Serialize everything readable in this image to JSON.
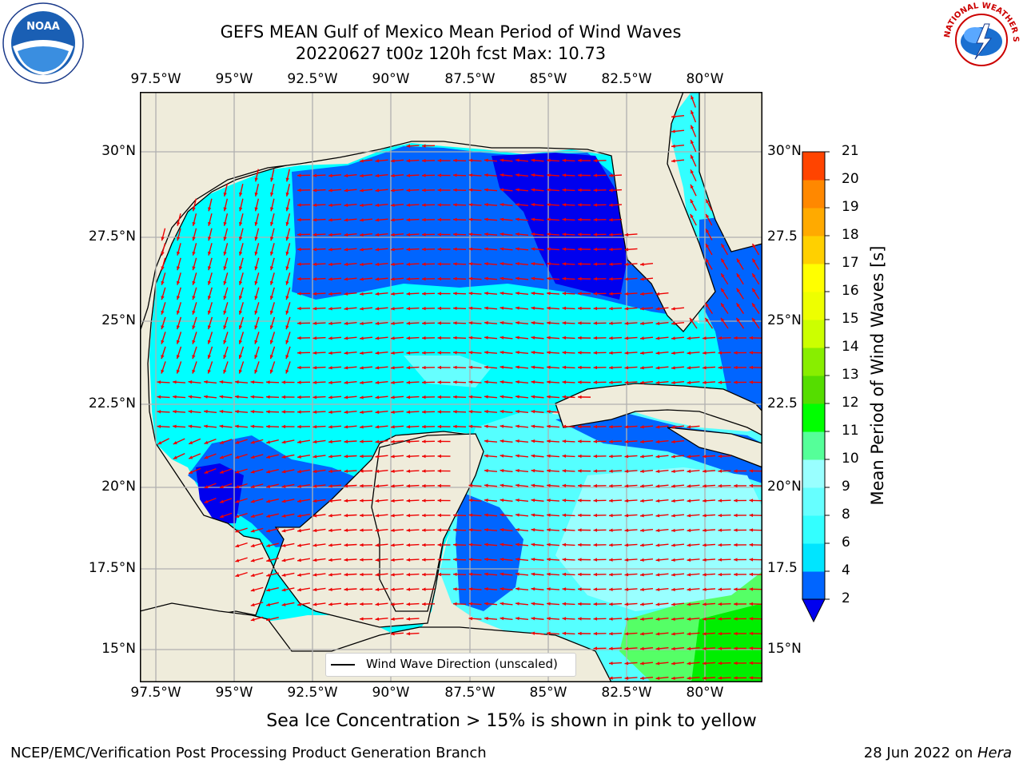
{
  "title": {
    "line1": "GEFS MEAN Gulf of Mexico Mean Period of Wind Waves",
    "line2": "20220627 t00z 120h fcst   Max: 10.73"
  },
  "logos": {
    "left": "NOAA",
    "right": "NATIONAL WEATHER SERVICE"
  },
  "axes": {
    "lon_labels": [
      "97.5°W",
      "95°W",
      "92.5°W",
      "90°W",
      "87.5°W",
      "85°W",
      "82.5°W",
      "80°W"
    ],
    "lat_labels": [
      "30°N",
      "27.5°N",
      "25°N",
      "22.5°N",
      "20°N",
      "17.5°N",
      "15°N"
    ],
    "lat_labels_right": [
      "30°N",
      "27.5",
      "25°N",
      "22.5",
      "20°N",
      "17.5",
      "15°N"
    ]
  },
  "legend": {
    "label": "Wind Wave Direction (unscaled)"
  },
  "colorbar": {
    "label": "Mean Period of Wind Waves [s]",
    "ticks": [
      "2",
      "4",
      "6",
      "8",
      "9",
      "10",
      "11",
      "12",
      "13",
      "14",
      "15",
      "16",
      "17",
      "18",
      "19",
      "20",
      "21"
    ],
    "colors": [
      "#0065ff",
      "#00e5ff",
      "#33ffff",
      "#66ffff",
      "#99ffff",
      "#55ff99",
      "#00ff00",
      "#55dd00",
      "#88ee00",
      "#ccff00",
      "#eeff00",
      "#ffff00",
      "#ffd000",
      "#ffaa00",
      "#ff8800",
      "#ff4400",
      "#ff0000"
    ]
  },
  "caption": "Sea Ice Concentration > 15% is shown in pink to yellow",
  "footer": {
    "left": "NCEP/EMC/Verification Post Processing Product Generation Branch",
    "right_date": "28 Jun 2022 on ",
    "right_machine": "Hera"
  },
  "map_colors": {
    "land": "#efecdb",
    "dark_blue": "#0000ee",
    "blue": "#0065ff",
    "cyan": "#00ffff",
    "light_cyan": "#55ffff",
    "green": "#55ff66",
    "bright_green": "#00ee00",
    "arrow": "#ee0000"
  }
}
